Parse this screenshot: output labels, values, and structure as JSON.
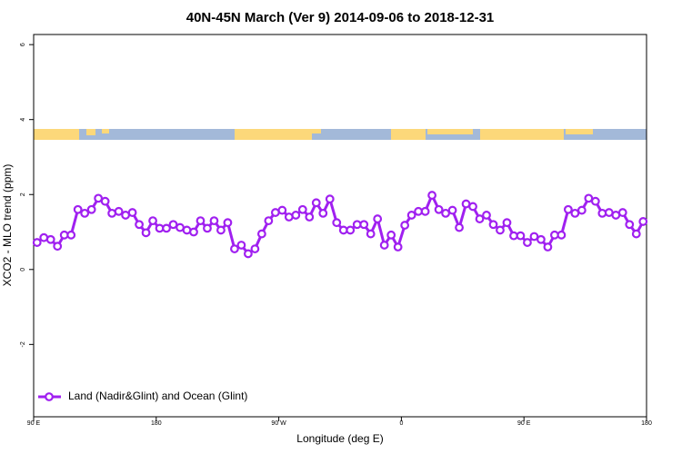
{
  "chart_data": {
    "type": "line",
    "title": "40N-45N March (Ver 9)   2014-09-06 to 2018-12-31",
    "x_label": "Longitude (deg E)",
    "y_label": "XCO2 - MLO trend (ppm)",
    "x": [
      92.5,
      97.5,
      102.5,
      107.5,
      112.5,
      117.5,
      122.5,
      127.5,
      132.5,
      137.5,
      142.5,
      147.5,
      152.5,
      157.5,
      162.5,
      167.5,
      172.5,
      177.5,
      182.5,
      187.5,
      192.5,
      197.5,
      202.5,
      207.5,
      212.5,
      217.5,
      222.5,
      227.5,
      232.5,
      237.5,
      242.5,
      247.5,
      252.5,
      257.5,
      262.5,
      267.5,
      272.5,
      277.5,
      282.5,
      287.5,
      292.5,
      297.5,
      302.5,
      307.5,
      312.5,
      317.5,
      322.5,
      327.5,
      332.5,
      337.5,
      342.5,
      347.5,
      352.5,
      357.5,
      362.5,
      367.5,
      372.5,
      377.5,
      382.5,
      387.5,
      392.5,
      397.5,
      402.5,
      407.5,
      412.5,
      417.5,
      422.5,
      427.5,
      432.5,
      437.5,
      442.5,
      447.5,
      452.5,
      457.5,
      462.5,
      467.5,
      472.5,
      477.5,
      482.5,
      487.5,
      492.5,
      497.5,
      502.5,
      507.5,
      512.5,
      517.5,
      522.5,
      527.5,
      532.5,
      537.5
    ],
    "series": [
      {
        "name": "Land (Nadir&Glint) and Ocean (Glint)",
        "color": "#a020f0",
        "values": [
          0.72,
          0.85,
          0.8,
          0.62,
          0.92,
          0.92,
          1.6,
          1.5,
          1.6,
          1.9,
          1.82,
          1.5,
          1.55,
          1.45,
          1.52,
          1.2,
          0.98,
          1.3,
          1.1,
          1.1,
          1.2,
          1.12,
          1.05,
          1.0,
          1.3,
          1.1,
          1.3,
          1.05,
          1.25,
          0.55,
          0.65,
          0.42,
          0.55,
          0.95,
          1.3,
          1.52,
          1.58,
          1.4,
          1.45,
          1.6,
          1.4,
          1.78,
          1.5,
          1.88,
          1.25,
          1.05,
          1.05,
          1.2,
          1.2,
          0.95,
          1.35,
          0.65,
          0.92,
          0.6,
          1.18,
          1.45,
          1.55,
          1.55,
          1.98,
          1.6,
          1.5,
          1.58,
          1.12,
          1.75,
          1.68,
          1.35,
          1.45,
          1.2,
          1.05,
          1.25,
          0.9,
          0.9,
          0.72,
          0.88,
          0.8,
          0.6,
          0.92,
          0.92,
          1.6,
          1.5,
          1.58,
          1.9,
          1.82,
          1.5,
          1.52,
          1.45,
          1.52,
          1.2,
          0.95,
          1.28
        ]
      }
    ],
    "xlim": [
      90,
      540
    ],
    "xticks": [
      {
        "value": 90,
        "label": "90 E"
      },
      180,
      {
        "value": 270,
        "label": "90 W"
      },
      {
        "value": 360,
        "label": "0"
      },
      {
        "value": 450,
        "label": "90 E"
      },
      {
        "value": 540,
        "label": "180"
      }
    ],
    "ylim": [
      -3.93,
      6.27
    ],
    "yticks": [
      -2,
      0,
      2,
      4,
      6
    ],
    "legend": "bottom-left"
  }
}
